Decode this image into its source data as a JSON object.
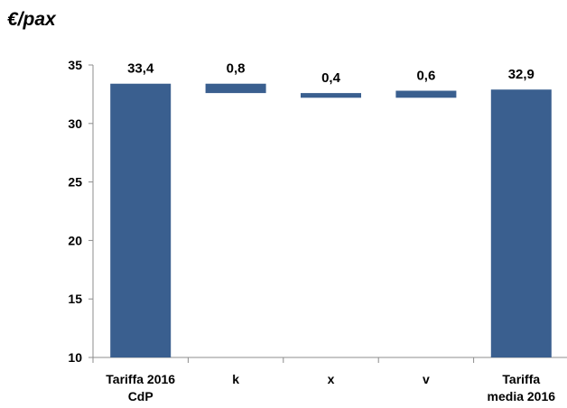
{
  "chart_data": {
    "type": "bar",
    "subtype": "waterfall",
    "ylabel": "€/pax",
    "ylim": [
      10,
      35
    ],
    "yticks": [
      10,
      15,
      20,
      25,
      30,
      35
    ],
    "grid": false,
    "bar_color": "#3A5F8F",
    "categories": [
      [
        "Tariffa 2016",
        "CdP"
      ],
      [
        "k"
      ],
      [
        "x"
      ],
      [
        "v"
      ],
      [
        "Tariffa",
        "media 2016"
      ]
    ],
    "bars": [
      {
        "low": 10,
        "high": 33.4,
        "label": "33,4"
      },
      {
        "low": 32.6,
        "high": 33.4,
        "label": "0,8"
      },
      {
        "low": 32.2,
        "high": 32.6,
        "label": "0,4"
      },
      {
        "low": 32.2,
        "high": 32.8,
        "label": "0,6"
      },
      {
        "low": 10,
        "high": 32.9,
        "label": "32,9"
      }
    ]
  }
}
